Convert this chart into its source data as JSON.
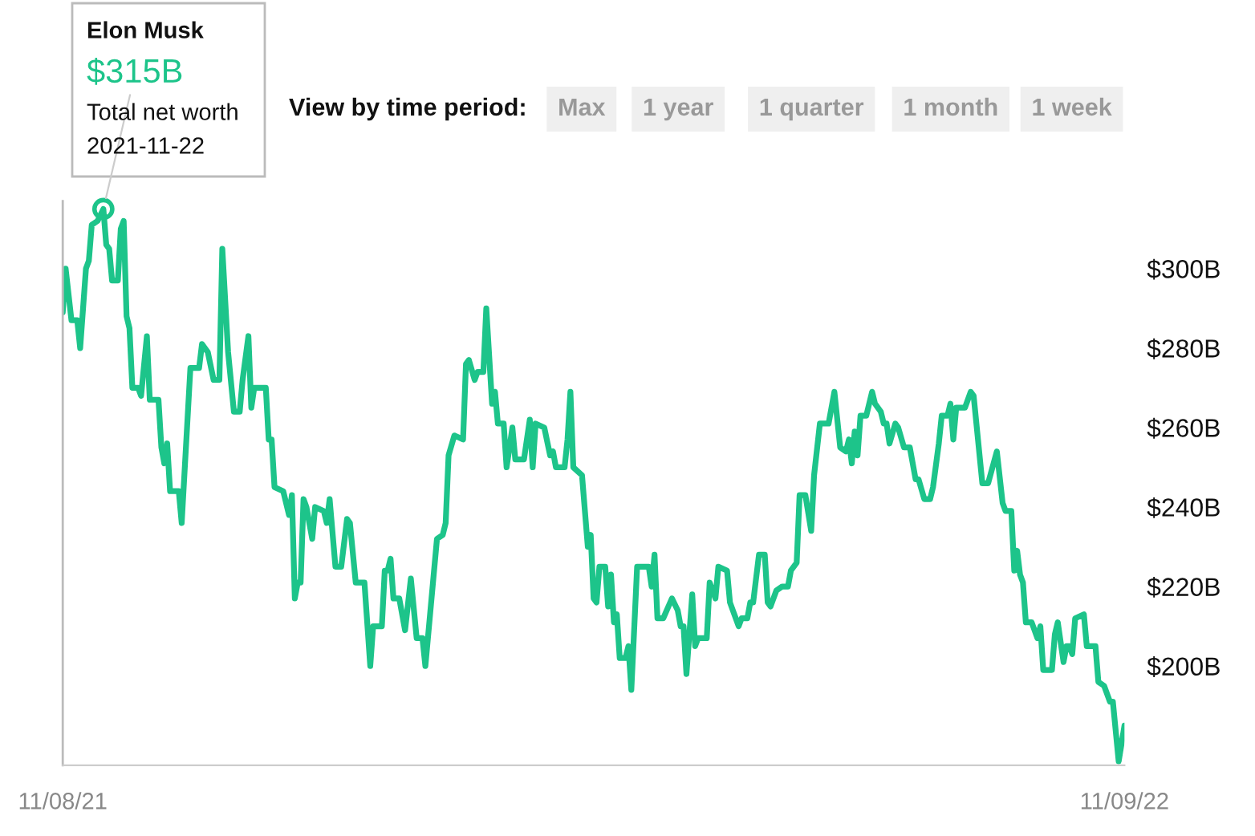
{
  "chart_data": {
    "type": "line",
    "annotations": [
      "Elon Musk",
      {
        "text": "$315B",
        "x": "2021-11-22",
        "y": 315
      },
      "Total net worth",
      "2021-11-22",
      "View by time period:",
      "Max",
      "1 year",
      "1 quarter",
      "1 month",
      "1 week"
    ],
    "series": [
      {
        "color": "#1dc48a",
        "x": [
          "2021-11-08",
          "2021-11-09",
          "2021-11-11",
          "2021-11-13",
          "2021-11-14",
          "2021-11-16",
          "2021-11-17",
          "2021-11-18",
          "2021-11-20",
          "2021-11-22",
          "2021-11-23",
          "2021-11-24",
          "2021-11-25",
          "2021-11-27",
          "2021-11-28",
          "2021-11-29",
          "2021-11-30",
          "2021-12-01",
          "2021-12-02",
          "2021-12-04",
          "2021-12-05",
          "2021-12-07",
          "2021-12-08",
          "2021-12-11",
          "2021-12-12",
          "2021-12-13",
          "2021-12-14",
          "2021-12-15",
          "2021-12-18",
          "2021-12-19",
          "2021-12-22",
          "2021-12-25",
          "2021-12-26",
          "2021-12-28",
          "2021-12-30",
          "2022-01-01",
          "2022-01-02",
          "2022-01-04",
          "2022-01-06",
          "2022-01-08",
          "2022-01-09",
          "2022-01-11",
          "2022-01-12",
          "2022-01-13",
          "2022-01-17",
          "2022-01-18",
          "2022-01-19",
          "2022-01-20",
          "2022-01-23",
          "2022-01-25",
          "2022-01-26",
          "2022-01-27",
          "2022-01-28",
          "2022-01-29",
          "2022-01-30",
          "2022-01-31",
          "2022-02-02",
          "2022-02-03",
          "2022-02-06",
          "2022-02-07",
          "2022-02-08",
          "2022-02-10",
          "2022-02-12",
          "2022-02-14",
          "2022-02-15",
          "2022-02-17",
          "2022-02-20",
          "2022-02-22",
          "2022-02-23",
          "2022-02-26",
          "2022-02-27",
          "2022-02-28",
          "2022-03-01",
          "2022-03-02",
          "2022-03-04",
          "2022-03-06",
          "2022-03-08",
          "2022-03-10",
          "2022-03-12",
          "2022-03-13",
          "2022-03-17",
          "2022-03-19",
          "2022-03-20",
          "2022-03-21",
          "2022-03-23",
          "2022-03-26",
          "2022-03-27",
          "2022-03-28",
          "2022-03-30",
          "2022-03-31",
          "2022-04-02",
          "2022-04-03",
          "2022-04-05",
          "2022-04-06",
          "2022-04-07",
          "2022-04-09",
          "2022-04-10",
          "2022-04-12",
          "2022-04-13",
          "2022-04-16",
          "2022-04-18",
          "2022-04-19",
          "2022-04-20",
          "2022-04-23",
          "2022-04-25",
          "2022-04-26",
          "2022-04-27",
          "2022-04-30",
          "2022-05-01",
          "2022-05-02",
          "2022-05-03",
          "2022-05-06",
          "2022-05-08",
          "2022-05-09",
          "2022-05-10",
          "2022-05-11",
          "2022-05-12",
          "2022-05-14",
          "2022-05-15",
          "2022-05-16",
          "2022-05-17",
          "2022-05-18",
          "2022-05-19",
          "2022-05-21",
          "2022-05-22",
          "2022-05-23",
          "2022-05-25",
          "2022-05-29",
          "2022-05-30",
          "2022-05-31",
          "2022-06-01",
          "2022-06-03",
          "2022-06-06",
          "2022-06-08",
          "2022-06-09",
          "2022-06-10",
          "2022-06-11",
          "2022-06-13",
          "2022-06-14",
          "2022-06-15",
          "2022-06-18",
          "2022-06-19",
          "2022-06-21",
          "2022-06-22",
          "2022-06-25",
          "2022-06-26",
          "2022-06-29",
          "2022-06-30",
          "2022-07-02",
          "2022-07-03",
          "2022-07-04",
          "2022-07-06",
          "2022-07-08",
          "2022-07-09",
          "2022-07-10",
          "2022-07-12",
          "2022-07-14",
          "2022-07-16",
          "2022-07-17",
          "2022-07-19",
          "2022-07-20",
          "2022-07-22",
          "2022-07-24",
          "2022-07-25",
          "2022-07-27",
          "2022-07-30",
          "2022-08-01",
          "2022-08-03",
          "2022-08-05",
          "2022-08-06",
          "2022-08-07",
          "2022-08-08",
          "2022-08-09",
          "2022-08-10",
          "2022-08-12",
          "2022-08-14",
          "2022-08-15",
          "2022-08-17",
          "2022-08-18",
          "2022-08-19",
          "2022-08-20",
          "2022-08-22",
          "2022-08-23",
          "2022-08-25",
          "2022-08-27",
          "2022-08-29",
          "2022-08-30",
          "2022-09-01",
          "2022-09-03",
          "2022-09-04",
          "2022-09-06",
          "2022-09-07",
          "2022-09-09",
          "2022-09-10",
          "2022-09-11",
          "2022-09-12",
          "2022-09-15",
          "2022-09-17",
          "2022-09-18",
          "2022-09-21",
          "2022-09-23",
          "2022-09-26",
          "2022-09-28",
          "2022-09-29",
          "2022-10-01",
          "2022-10-02",
          "2022-10-03",
          "2022-10-04",
          "2022-10-05",
          "2022-10-06",
          "2022-10-08",
          "2022-10-10",
          "2022-10-11",
          "2022-10-12",
          "2022-10-15",
          "2022-10-16",
          "2022-10-17",
          "2022-10-19",
          "2022-10-20",
          "2022-10-21",
          "2022-10-22",
          "2022-10-23",
          "2022-10-26",
          "2022-10-27",
          "2022-10-29",
          "2022-10-30",
          "2022-10-31",
          "2022-11-02",
          "2022-11-04",
          "2022-11-05",
          "2022-11-07",
          "2022-11-09"
        ],
        "values": [
          289,
          300,
          287,
          287,
          280,
          300,
          302,
          311,
          312,
          315,
          306,
          305,
          297,
          297,
          310,
          312,
          288,
          285,
          270,
          270,
          268,
          283,
          267,
          267,
          255,
          251,
          256,
          244,
          244,
          236,
          275,
          275,
          281,
          279,
          272,
          272,
          305,
          279,
          264,
          264,
          272,
          283,
          265,
          270,
          270,
          257,
          257,
          245,
          244,
          238,
          243,
          217,
          221,
          221,
          242,
          240,
          232,
          240,
          239,
          236,
          242,
          225,
          225,
          237,
          236,
          221,
          221,
          200,
          210,
          210,
          224,
          224,
          227,
          217,
          217,
          209,
          222,
          207,
          207,
          200,
          232,
          233,
          236,
          253,
          258,
          257,
          276,
          277,
          272,
          274,
          274,
          290,
          266,
          269,
          261,
          261,
          250,
          260,
          252,
          252,
          262,
          250,
          261,
          260,
          253,
          254,
          250,
          250,
          257,
          269,
          250,
          248,
          230,
          233,
          217,
          216,
          225,
          225,
          215,
          223,
          211,
          213,
          202,
          202,
          205,
          194,
          225,
          225,
          220,
          228,
          212,
          212,
          217,
          214,
          210,
          210,
          198,
          218,
          205,
          207,
          207,
          221,
          217,
          225,
          224,
          216,
          210,
          212,
          212,
          216,
          216,
          228,
          228,
          216,
          215,
          219,
          220,
          220,
          224,
          226,
          243,
          243,
          234,
          248,
          261,
          261,
          269,
          255,
          254,
          257,
          251,
          259,
          253,
          263,
          263,
          269,
          266,
          264,
          261,
          261,
          256,
          261,
          260,
          255,
          255,
          247,
          247,
          242,
          242,
          245,
          256,
          263,
          263,
          266,
          257,
          265,
          265,
          269,
          268,
          246,
          246,
          254,
          241,
          239,
          239,
          224,
          229,
          223,
          221,
          211,
          211,
          207,
          210,
          199,
          199,
          208,
          211,
          201,
          205,
          205,
          203,
          212,
          213,
          205,
          205,
          205,
          196,
          195,
          191,
          191,
          176,
          185
        ]
      }
    ],
    "ylim": [
      175,
      317
    ],
    "yticks": [
      {
        "value": 200,
        "label": "$200B"
      },
      {
        "value": 220,
        "label": "$220B"
      },
      {
        "value": 240,
        "label": "$240B"
      },
      {
        "value": 260,
        "label": "$260B"
      },
      {
        "value": 280,
        "label": "$280B"
      },
      {
        "value": 300,
        "label": "$300B"
      }
    ],
    "xlim": [
      "2021-11-08",
      "2022-11-09"
    ],
    "xticks": [
      {
        "value": "2021-11-08",
        "label": "11/08/21"
      },
      {
        "value": "2022-11-09",
        "label": "11/09/22"
      }
    ],
    "grid": false,
    "legend": false,
    "marker": "none",
    "line_style": "solid"
  }
}
